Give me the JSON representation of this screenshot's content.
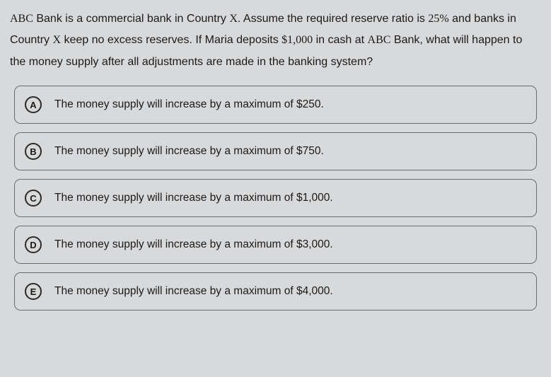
{
  "question": {
    "text_parts": [
      {
        "serif": true,
        "text": "ABC"
      },
      {
        "serif": false,
        "text": " Bank is a commercial bank in Country "
      },
      {
        "serif": true,
        "text": "X"
      },
      {
        "serif": false,
        "text": ". Assume the required reserve ratio is "
      },
      {
        "serif": true,
        "text": "25%"
      },
      {
        "serif": false,
        "text": " and banks in Country "
      },
      {
        "serif": true,
        "text": "X"
      },
      {
        "serif": false,
        "text": " keep no excess reserves. If Maria deposits "
      },
      {
        "serif": true,
        "text": "$1,000"
      },
      {
        "serif": false,
        "text": " in cash at "
      },
      {
        "serif": true,
        "text": "ABC"
      },
      {
        "serif": false,
        "text": " Bank, what will happen to the money supply after all adjustments are made in the banking system?"
      }
    ]
  },
  "options": [
    {
      "letter": "A",
      "text": "The money supply will increase by a maximum of $250."
    },
    {
      "letter": "B",
      "text": "The money supply will increase by a maximum of $750."
    },
    {
      "letter": "C",
      "text": "The money supply will increase by a maximum of $1,000."
    },
    {
      "letter": "D",
      "text": "The money supply will increase by a maximum of $3,000."
    },
    {
      "letter": "E",
      "text": "The money supply will increase by a maximum of $4,000."
    }
  ],
  "styles": {
    "background_color": "#d8d9db",
    "text_color": "#1a1a1a",
    "border_color": "#6a6c70",
    "option_border_radius": 9,
    "question_fontsize": 16,
    "option_fontsize": 15.5,
    "letter_circle_size": 24
  }
}
